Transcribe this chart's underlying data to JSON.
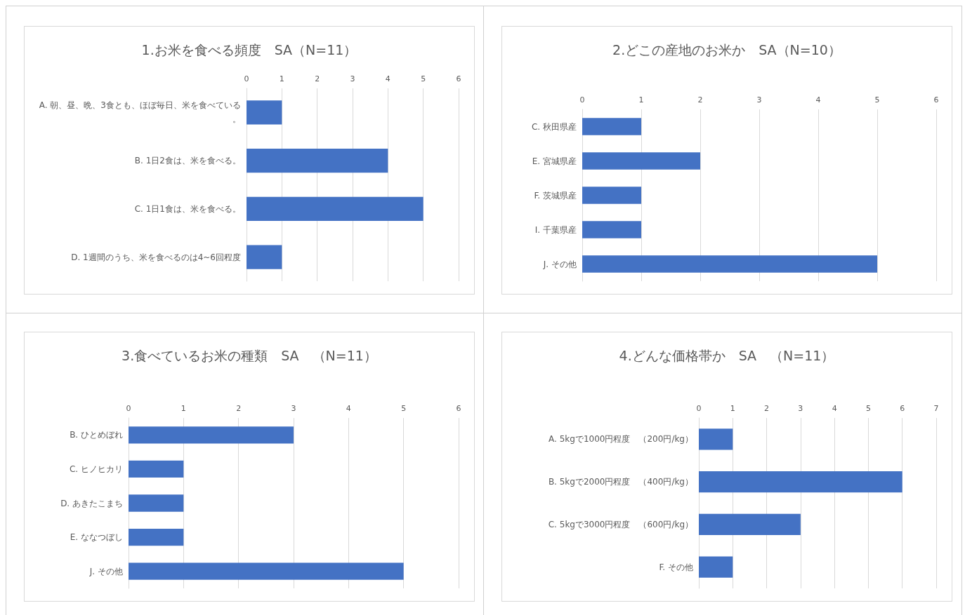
{
  "chart_data": [
    {
      "type": "bar",
      "orientation": "horizontal",
      "title": "1.お米を食べる頻度　SA（N=11）",
      "categories": [
        "A. 朝、昼、晩、3食とも、ほぼ毎日、米を食べている。",
        "B. 1日2食は、米を食べる。",
        "C. 1日1食は、米を食べる。",
        "D. 1週間のうち、米を食べるのは4~6回程度"
      ],
      "values": [
        1,
        4,
        5,
        1
      ],
      "color": "#4472c4",
      "xlim": [
        0,
        6
      ],
      "xticks": [
        0,
        1,
        2,
        3,
        4,
        5,
        6
      ],
      "grid": "x"
    },
    {
      "type": "bar",
      "orientation": "horizontal",
      "title": "2.どこの産地のお米か　SA（N=10）",
      "categories": [
        "C. 秋田県産",
        "E. 宮城県産",
        "F. 茨城県産",
        "I. 千葉県産",
        "J. その他"
      ],
      "values": [
        1,
        2,
        1,
        1,
        5
      ],
      "color": "#4472c4",
      "xlim": [
        0,
        6
      ],
      "xticks": [
        0,
        1,
        2,
        3,
        4,
        5,
        6
      ],
      "grid": "x"
    },
    {
      "type": "bar",
      "orientation": "horizontal",
      "title": "3.食べているお米の種類　SA　（N=11）",
      "categories": [
        "B. ひとめぼれ",
        "C. ヒノヒカリ",
        "D. あきたこまち",
        "E. ななつぼし",
        "J. その他"
      ],
      "values": [
        3,
        1,
        1,
        1,
        5
      ],
      "color": "#4472c4",
      "xlim": [
        0,
        6
      ],
      "xticks": [
        0,
        1,
        2,
        3,
        4,
        5,
        6
      ],
      "grid": "x"
    },
    {
      "type": "bar",
      "orientation": "horizontal",
      "title": "4.どんな価格帯か　SA　（N=11）",
      "categories": [
        "A. 5kgで1000円程度　（200円/kg）",
        "B. 5kgで2000円程度　（400円/kg）",
        "C. 5kgで3000円程度　（600円/kg）",
        "F. その他"
      ],
      "values": [
        1,
        6,
        3,
        1
      ],
      "color": "#4472c4",
      "xlim": [
        0,
        7
      ],
      "xticks": [
        0,
        1,
        2,
        3,
        4,
        5,
        6,
        7
      ],
      "grid": "x"
    }
  ]
}
